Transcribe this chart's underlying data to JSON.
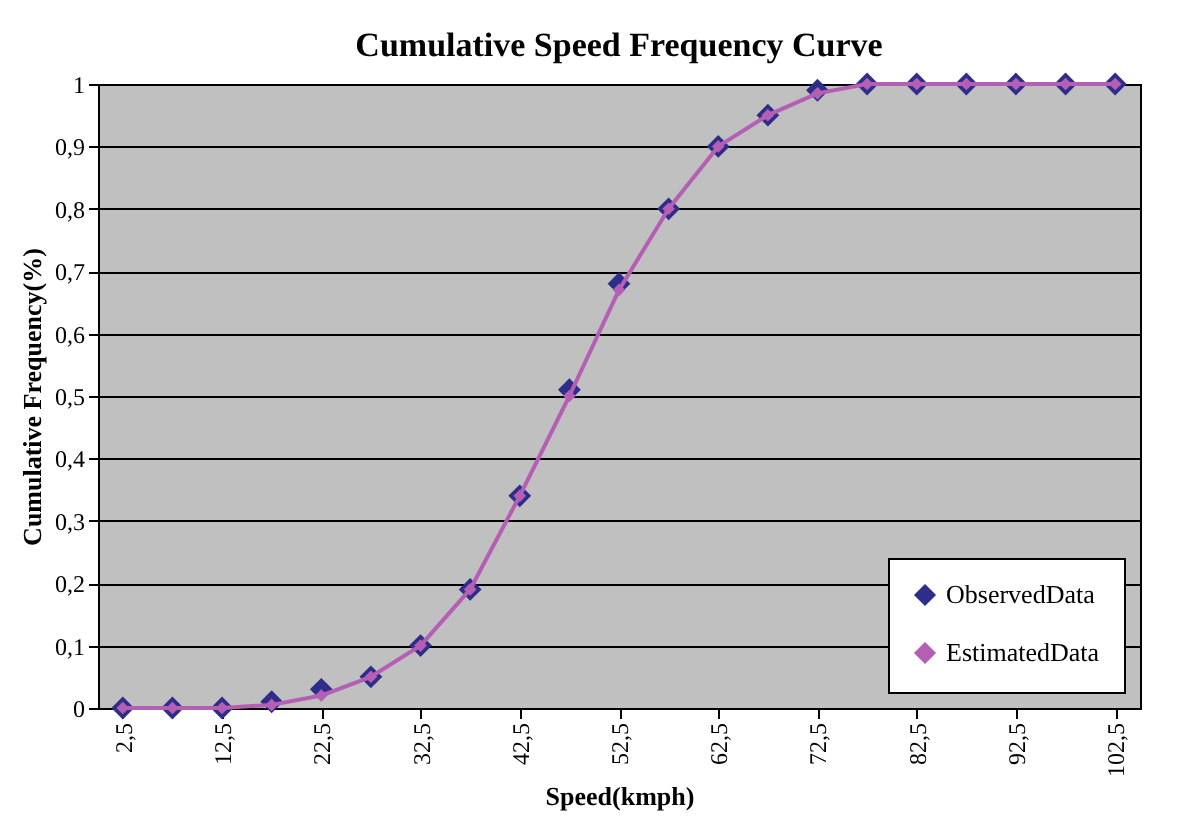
{
  "chart_data": {
    "type": "line",
    "title": "Cumulative Speed Frequency Curve",
    "xlabel": "Speed(kmph)",
    "ylabel": "Cumulative Frequency(%)",
    "x": [
      2.5,
      7.5,
      12.5,
      17.5,
      22.5,
      27.5,
      32.5,
      37.5,
      42.5,
      47.5,
      52.5,
      57.5,
      62.5,
      67.5,
      72.5,
      77.5,
      82.5,
      87.5,
      92.5,
      97.5,
      102.5
    ],
    "series": [
      {
        "name": "ObservedData",
        "type": "scatter",
        "marker": "diamond",
        "color": "#2e2e8a",
        "values": [
          0,
          0,
          0,
          0.01,
          0.03,
          0.05,
          0.1,
          0.19,
          0.34,
          0.51,
          0.68,
          0.8,
          0.9,
          0.95,
          0.99,
          1,
          1,
          1,
          1,
          1,
          1
        ]
      },
      {
        "name": "EstimatedData",
        "marker": "diamond",
        "line_style": "solid",
        "color": "#b45fb4",
        "values": [
          0,
          0,
          0,
          0.005,
          0.02,
          0.05,
          0.1,
          0.19,
          0.34,
          0.5,
          0.67,
          0.8,
          0.9,
          0.95,
          0.985,
          1,
          1,
          1,
          1,
          1,
          1
        ]
      }
    ],
    "xlim": [
      0,
      105
    ],
    "xticks": [
      {
        "value": 2.5,
        "label": "2,5"
      },
      {
        "value": 12.5,
        "label": "12,5"
      },
      {
        "value": 22.5,
        "label": "22,5"
      },
      {
        "value": 32.5,
        "label": "32,5"
      },
      {
        "value": 42.5,
        "label": "42,5"
      },
      {
        "value": 52.5,
        "label": "52,5"
      },
      {
        "value": 62.5,
        "label": "62,5"
      },
      {
        "value": 72.5,
        "label": "72,5"
      },
      {
        "value": 82.5,
        "label": "82,5"
      },
      {
        "value": 92.5,
        "label": "92,5"
      },
      {
        "value": 102.5,
        "label": "102,5"
      }
    ],
    "ylim": [
      0,
      1
    ],
    "yticks": [
      0,
      {
        "value": 0.1,
        "label": "0,1"
      },
      {
        "value": 0.2,
        "label": "0,2"
      },
      {
        "value": 0.3,
        "label": "0,3"
      },
      {
        "value": 0.4,
        "label": "0,4"
      },
      {
        "value": 0.5,
        "label": "0,5"
      },
      {
        "value": 0.6,
        "label": "0,6"
      },
      {
        "value": 0.7,
        "label": "0,7"
      },
      {
        "value": 0.8,
        "label": "0,8"
      },
      {
        "value": 0.9,
        "label": "0,9"
      },
      1
    ],
    "grid": "y",
    "legend": "bottom right"
  }
}
